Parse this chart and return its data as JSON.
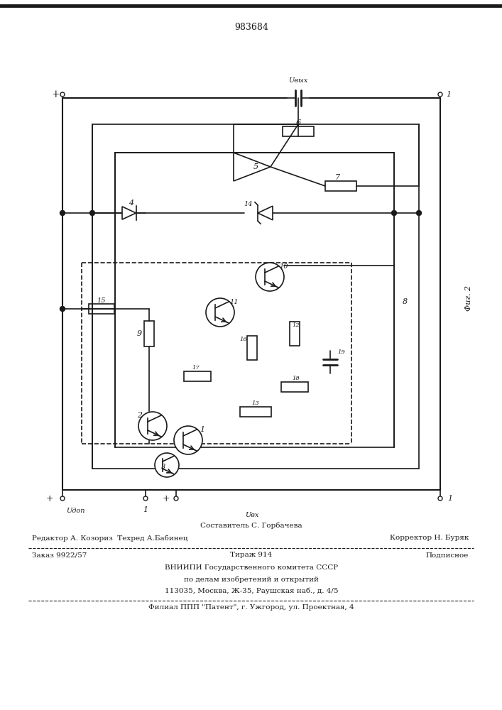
{
  "patent_number": "983684",
  "fig_label": "Фиг. 2",
  "bg_color": "#ffffff",
  "line_color": "#1a1a1a",
  "footer": {
    "line1_center": "Составитель С. Горбачева",
    "line2_left": "Редактор А. Козориз  Техред А.Бабинец",
    "line2_right": "Корректор Н. Буряк",
    "line3_left": "Заказ 9922/57",
    "line3_center": "Тираж 914",
    "line3_right": "Подписное",
    "line4": "ВНИИПИ Государственного комитета СССР",
    "line5": "по делам изобретений и открытий",
    "line6": "113035, Москва, Ж-35, Раушская наб., д. 4/5",
    "line7": "Филиал ППП \"Патент\", г. Ужгород, ул. Проектная, 4"
  }
}
